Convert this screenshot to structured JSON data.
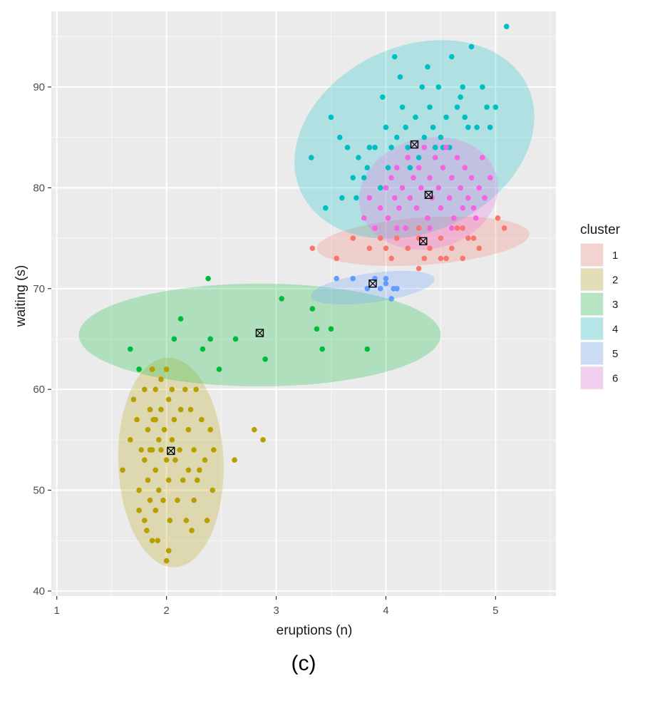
{
  "caption": "(c)",
  "chart_data": {
    "type": "scatter",
    "xlabel": "eruptions (n)",
    "ylabel": "waiting (s)",
    "xlim": [
      0.95,
      5.55
    ],
    "ylim": [
      39.5,
      97.5
    ],
    "x_ticks": [
      1,
      2,
      3,
      4,
      5
    ],
    "y_ticks": [
      40,
      50,
      60,
      70,
      80,
      90
    ],
    "grid": true,
    "legend": {
      "title": "cluster",
      "position": "right"
    },
    "colors": {
      "1": "#F8766D",
      "2": "#B79F00",
      "3": "#00BA38",
      "4": "#00BFC4",
      "5": "#619CFF",
      "6": "#F564E3"
    },
    "series": [
      {
        "name": "1",
        "points": [
          [
            3.33,
            74
          ],
          [
            3.55,
            73
          ],
          [
            3.7,
            75
          ],
          [
            3.85,
            74
          ],
          [
            3.95,
            75
          ],
          [
            4.0,
            74
          ],
          [
            4.05,
            73
          ],
          [
            4.1,
            75
          ],
          [
            4.2,
            74
          ],
          [
            4.3,
            75
          ],
          [
            4.3,
            72
          ],
          [
            4.35,
            73
          ],
          [
            4.4,
            74
          ],
          [
            4.5,
            73
          ],
          [
            4.5,
            75
          ],
          [
            4.55,
            73
          ],
          [
            4.6,
            74
          ],
          [
            4.7,
            73
          ],
          [
            4.75,
            75
          ],
          [
            4.8,
            75
          ],
          [
            4.7,
            76
          ],
          [
            4.85,
            74
          ],
          [
            5.02,
            77
          ],
          [
            5.08,
            76
          ],
          [
            4.65,
            76
          ],
          [
            4.3,
            76
          ]
        ],
        "centroid": [
          4.34,
          74.7
        ],
        "ellipse": {
          "cx": 4.34,
          "cy": 74.7,
          "rx": 0.97,
          "ry": 2.35,
          "angle_deg": -4
        }
      },
      {
        "name": "2",
        "points": [
          [
            1.6,
            52
          ],
          [
            1.67,
            55
          ],
          [
            1.7,
            59
          ],
          [
            1.73,
            57
          ],
          [
            1.75,
            62
          ],
          [
            1.75,
            50
          ],
          [
            1.75,
            48
          ],
          [
            1.77,
            54
          ],
          [
            1.8,
            53
          ],
          [
            1.8,
            47
          ],
          [
            1.8,
            60
          ],
          [
            1.82,
            46
          ],
          [
            1.83,
            56
          ],
          [
            1.83,
            51
          ],
          [
            1.85,
            58
          ],
          [
            1.85,
            54
          ],
          [
            1.85,
            49
          ],
          [
            1.87,
            45
          ],
          [
            1.87,
            62
          ],
          [
            1.88,
            57
          ],
          [
            1.9,
            52
          ],
          [
            1.9,
            60
          ],
          [
            1.9,
            48
          ],
          [
            1.92,
            45
          ],
          [
            1.93,
            55
          ],
          [
            1.93,
            50
          ],
          [
            1.95,
            58
          ],
          [
            1.95,
            54
          ],
          [
            1.97,
            49
          ],
          [
            1.98,
            56
          ],
          [
            2.0,
            62
          ],
          [
            2.0,
            53
          ],
          [
            2.0,
            43
          ],
          [
            2.02,
            59
          ],
          [
            2.02,
            51
          ],
          [
            2.03,
            47
          ],
          [
            2.05,
            55
          ],
          [
            2.05,
            60
          ],
          [
            2.07,
            57
          ],
          [
            2.08,
            53
          ],
          [
            2.1,
            49
          ],
          [
            2.12,
            54
          ],
          [
            2.13,
            58
          ],
          [
            2.15,
            51
          ],
          [
            2.17,
            60
          ],
          [
            2.18,
            47
          ],
          [
            2.2,
            52
          ],
          [
            2.2,
            56
          ],
          [
            2.22,
            58
          ],
          [
            2.23,
            46
          ],
          [
            2.25,
            54
          ],
          [
            2.25,
            49
          ],
          [
            2.27,
            60
          ],
          [
            2.28,
            51
          ],
          [
            2.3,
            52
          ],
          [
            2.32,
            57
          ],
          [
            2.35,
            53
          ],
          [
            2.37,
            47
          ],
          [
            2.4,
            56
          ],
          [
            2.42,
            50
          ],
          [
            2.43,
            54
          ],
          [
            2.62,
            53
          ],
          [
            2.8,
            56
          ],
          [
            2.88,
            55
          ],
          [
            1.87,
            54
          ],
          [
            1.95,
            61
          ],
          [
            2.02,
            44
          ],
          [
            1.9,
            57
          ]
        ],
        "centroid": [
          2.04,
          53.9
        ],
        "ellipse": {
          "cx": 2.04,
          "cy": 52.75,
          "rx": 0.48,
          "ry": 10.4,
          "angle_deg": -2
        }
      },
      {
        "name": "3",
        "points": [
          [
            1.67,
            64
          ],
          [
            1.75,
            62
          ],
          [
            2.07,
            65
          ],
          [
            2.13,
            67
          ],
          [
            2.33,
            64
          ],
          [
            2.4,
            65
          ],
          [
            2.38,
            71
          ],
          [
            2.48,
            62
          ],
          [
            2.63,
            65
          ],
          [
            2.9,
            63
          ],
          [
            3.05,
            69
          ],
          [
            3.33,
            68
          ],
          [
            3.37,
            66
          ],
          [
            3.42,
            64
          ],
          [
            3.5,
            66
          ],
          [
            3.83,
            64
          ]
        ],
        "centroid": [
          2.85,
          65.6
        ],
        "ellipse": {
          "cx": 2.85,
          "cy": 65.4,
          "rx": 1.65,
          "ry": 5.1,
          "angle_deg": 0
        }
      },
      {
        "name": "4",
        "points": [
          [
            3.32,
            83
          ],
          [
            3.45,
            78
          ],
          [
            3.5,
            87
          ],
          [
            3.58,
            85
          ],
          [
            3.6,
            79
          ],
          [
            3.65,
            84
          ],
          [
            3.7,
            81
          ],
          [
            3.73,
            79
          ],
          [
            3.75,
            83
          ],
          [
            3.8,
            81
          ],
          [
            3.83,
            82
          ],
          [
            3.85,
            84
          ],
          [
            3.9,
            84
          ],
          [
            3.95,
            80
          ],
          [
            3.97,
            89
          ],
          [
            4.0,
            86
          ],
          [
            4.02,
            82
          ],
          [
            4.05,
            84
          ],
          [
            4.08,
            93
          ],
          [
            4.1,
            85
          ],
          [
            4.13,
            91
          ],
          [
            4.15,
            88
          ],
          [
            4.18,
            86
          ],
          [
            4.2,
            84
          ],
          [
            4.22,
            82
          ],
          [
            4.27,
            87
          ],
          [
            4.3,
            83
          ],
          [
            4.33,
            90
          ],
          [
            4.35,
            85
          ],
          [
            4.38,
            92
          ],
          [
            4.4,
            88
          ],
          [
            4.43,
            86
          ],
          [
            4.45,
            84
          ],
          [
            4.48,
            90
          ],
          [
            4.5,
            85
          ],
          [
            4.52,
            84
          ],
          [
            4.55,
            87
          ],
          [
            4.6,
            93
          ],
          [
            4.65,
            88
          ],
          [
            4.7,
            90
          ],
          [
            4.72,
            87
          ],
          [
            4.75,
            86
          ],
          [
            4.78,
            94
          ],
          [
            4.83,
            86
          ],
          [
            4.88,
            90
          ],
          [
            4.92,
            88
          ],
          [
            4.95,
            86
          ],
          [
            5.0,
            88
          ],
          [
            5.1,
            96
          ],
          [
            4.68,
            89
          ],
          [
            4.58,
            84
          ]
        ],
        "centroid": [
          4.26,
          84.3
        ],
        "ellipse": {
          "cx": 4.26,
          "cy": 84.8,
          "rx": 1.14,
          "ry": 9.2,
          "angle_deg": -25
        }
      },
      {
        "name": "5",
        "points": [
          [
            3.55,
            71
          ],
          [
            3.7,
            71
          ],
          [
            3.83,
            70
          ],
          [
            3.9,
            71
          ],
          [
            3.95,
            70
          ],
          [
            4.0,
            71
          ],
          [
            4.05,
            69
          ],
          [
            4.07,
            70
          ],
          [
            4.1,
            70
          ],
          [
            4.0,
            70.5
          ]
        ],
        "centroid": [
          3.88,
          70.5
        ],
        "ellipse": {
          "cx": 3.88,
          "cy": 70.1,
          "rx": 0.57,
          "ry": 1.45,
          "angle_deg": -8
        }
      },
      {
        "name": "6",
        "points": [
          [
            3.8,
            77
          ],
          [
            3.85,
            79
          ],
          [
            3.9,
            76
          ],
          [
            3.95,
            78
          ],
          [
            4.0,
            80
          ],
          [
            4.02,
            77
          ],
          [
            4.05,
            81
          ],
          [
            4.08,
            79
          ],
          [
            4.1,
            82
          ],
          [
            4.12,
            78
          ],
          [
            4.15,
            80
          ],
          [
            4.18,
            76
          ],
          [
            4.2,
            83
          ],
          [
            4.22,
            79
          ],
          [
            4.25,
            81
          ],
          [
            4.28,
            78
          ],
          [
            4.3,
            82
          ],
          [
            4.32,
            80
          ],
          [
            4.35,
            84
          ],
          [
            4.38,
            77
          ],
          [
            4.4,
            81
          ],
          [
            4.42,
            79
          ],
          [
            4.45,
            83
          ],
          [
            4.48,
            80
          ],
          [
            4.5,
            78
          ],
          [
            4.52,
            82
          ],
          [
            4.55,
            84
          ],
          [
            4.58,
            79
          ],
          [
            4.6,
            81
          ],
          [
            4.62,
            77
          ],
          [
            4.65,
            83
          ],
          [
            4.68,
            80
          ],
          [
            4.7,
            78
          ],
          [
            4.72,
            82
          ],
          [
            4.75,
            79
          ],
          [
            4.78,
            81
          ],
          [
            4.8,
            78
          ],
          [
            4.82,
            77
          ],
          [
            4.85,
            80
          ],
          [
            4.88,
            83
          ],
          [
            4.9,
            79
          ],
          [
            4.95,
            81
          ],
          [
            4.4,
            76
          ],
          [
            4.1,
            76
          ],
          [
            4.6,
            76
          ]
        ],
        "centroid": [
          4.39,
          79.3
        ],
        "ellipse": {
          "cx": 4.39,
          "cy": 79.45,
          "rx": 0.64,
          "ry": 5.5,
          "angle_deg": -14
        }
      }
    ]
  }
}
